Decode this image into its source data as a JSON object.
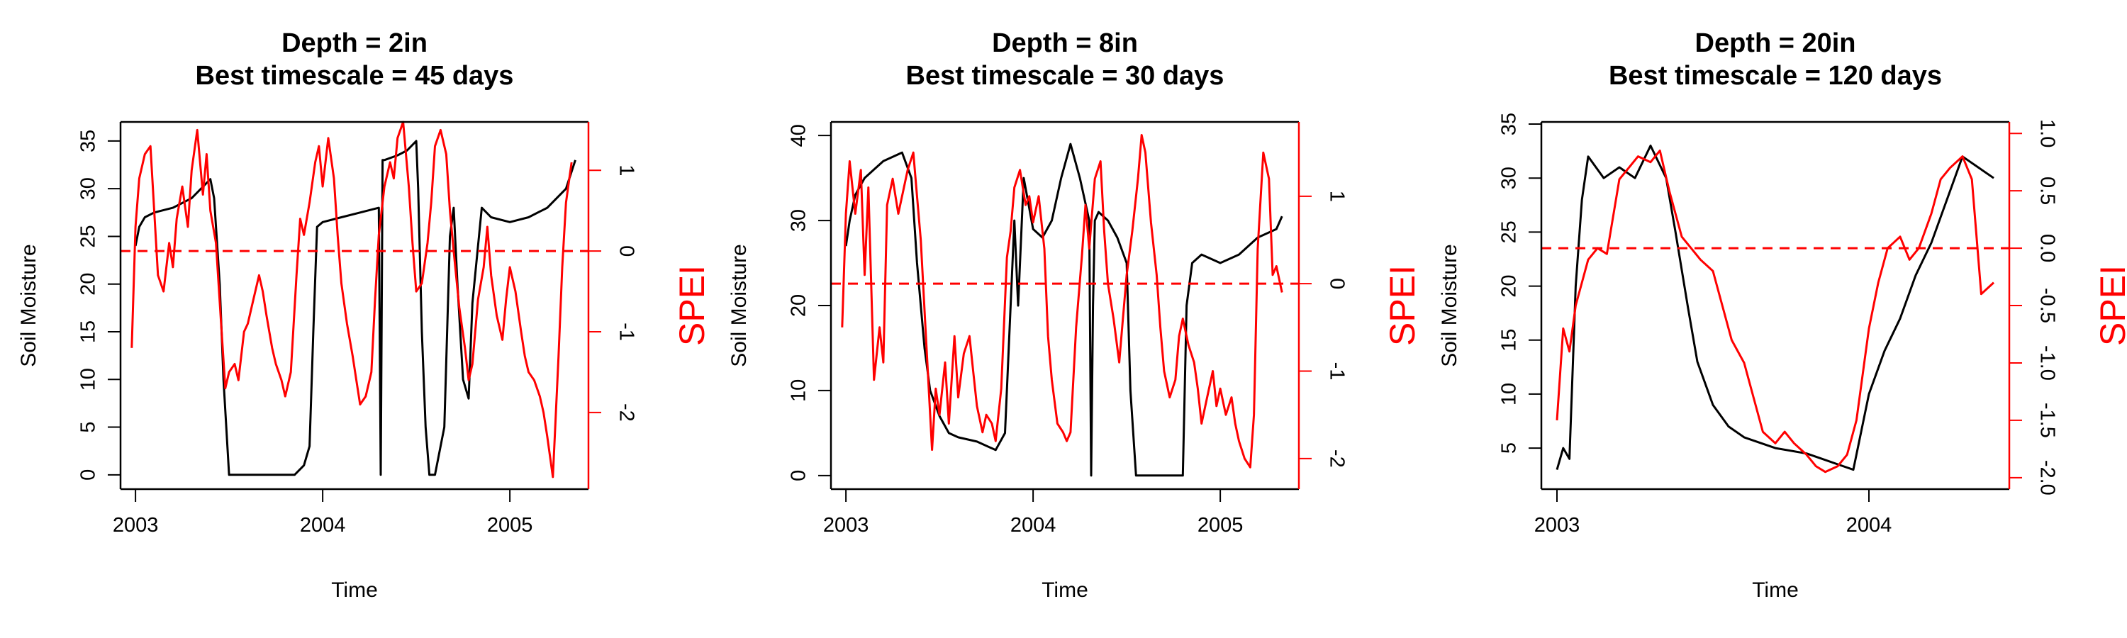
{
  "chart_data": [
    {
      "type": "line",
      "title_lines": [
        "Depth = 2in",
        "Best timescale = 45 days"
      ],
      "xlabel": "Time",
      "ylabel": "Soil Moisture",
      "y2label": "SPEI",
      "xlim": [
        2002.92,
        2005.42
      ],
      "ylim": [
        -1.5,
        37.0
      ],
      "y2lim": [
        -2.95,
        1.6
      ],
      "x_ticks": [
        2003,
        2004,
        2005
      ],
      "x_tick_labels": [
        "2003",
        "2004",
        "2005"
      ],
      "y_ticks": [
        0,
        5,
        10,
        15,
        20,
        25,
        30,
        35
      ],
      "y_tick_labels": [
        "0",
        "5",
        "10",
        "15",
        "20",
        "25",
        "30",
        "35"
      ],
      "y2_ticks": [
        -2,
        -1,
        0,
        1
      ],
      "y2_tick_labels": [
        "-2",
        "-1",
        "0",
        "1"
      ],
      "reference_line": {
        "axis": "y2",
        "value": 0,
        "style": "dashed",
        "color": "#ff0000"
      },
      "series": [
        {
          "axis": "y",
          "color": "#000000",
          "x": [
            2003.0,
            2003.02,
            2003.05,
            2003.1,
            2003.2,
            2003.3,
            2003.35,
            2003.4,
            2003.42,
            2003.45,
            2003.47,
            2003.5,
            2003.55,
            2003.7,
            2003.85,
            2003.9,
            2003.93,
            2003.95,
            2003.97,
            2004.0,
            2004.1,
            2004.2,
            2004.3,
            2004.31,
            2004.32,
            2004.33,
            2004.4,
            2004.45,
            2004.5,
            2004.51,
            2004.53,
            2004.55,
            2004.57,
            2004.6,
            2004.65,
            2004.68,
            2004.7,
            2004.72,
            2004.75,
            2004.78,
            2004.8,
            2004.85,
            2004.9,
            2005.0,
            2005.1,
            2005.2,
            2005.3,
            2005.35
          ],
          "y": [
            24,
            26,
            27,
            27.5,
            28,
            29,
            30,
            31,
            29,
            20,
            10,
            0,
            0,
            0,
            0,
            1,
            3,
            15,
            26,
            26.5,
            27,
            27.5,
            28,
            0,
            33,
            33,
            33.5,
            34,
            35,
            30,
            15,
            5,
            0,
            0,
            5,
            25,
            28,
            20,
            10,
            8,
            18,
            28,
            27,
            26.5,
            27,
            28,
            30,
            33
          ]
        },
        {
          "axis": "y2",
          "color": "#ff0000",
          "x": [
            2002.98,
            2003.0,
            2003.02,
            2003.05,
            2003.08,
            2003.1,
            2003.12,
            2003.15,
            2003.18,
            2003.2,
            2003.22,
            2003.25,
            2003.28,
            2003.3,
            2003.33,
            2003.36,
            2003.38,
            2003.4,
            2003.43,
            2003.46,
            2003.48,
            2003.5,
            2003.53,
            2003.55,
            2003.58,
            2003.6,
            2003.63,
            2003.66,
            2003.68,
            2003.7,
            2003.73,
            2003.75,
            2003.78,
            2003.8,
            2003.83,
            2003.86,
            2003.88,
            2003.9,
            2003.93,
            2003.96,
            2003.98,
            2004.0,
            2004.03,
            2004.06,
            2004.08,
            2004.1,
            2004.13,
            2004.16,
            2004.18,
            2004.2,
            2004.23,
            2004.26,
            2004.28,
            2004.3,
            2004.33,
            2004.36,
            2004.38,
            2004.4,
            2004.43,
            2004.46,
            2004.48,
            2004.5,
            2004.53,
            2004.56,
            2004.58,
            2004.6,
            2004.63,
            2004.66,
            2004.68,
            2004.7,
            2004.73,
            2004.76,
            2004.78,
            2004.8,
            2004.83,
            2004.86,
            2004.88,
            2004.9,
            2004.93,
            2004.96,
            2004.98,
            2005.0,
            2005.03,
            2005.06,
            2005.08,
            2005.1,
            2005.13,
            2005.16,
            2005.18,
            2005.2,
            2005.23,
            2005.26,
            2005.28,
            2005.3,
            2005.33
          ],
          "y": [
            -1.2,
            0.3,
            0.9,
            1.2,
            1.3,
            0.5,
            -0.3,
            -0.5,
            0.1,
            -0.2,
            0.4,
            0.8,
            0.3,
            1.0,
            1.5,
            0.7,
            1.2,
            0.5,
            0.1,
            -1.0,
            -1.7,
            -1.5,
            -1.4,
            -1.6,
            -1.0,
            -0.9,
            -0.6,
            -0.3,
            -0.5,
            -0.8,
            -1.2,
            -1.4,
            -1.6,
            -1.8,
            -1.5,
            -0.3,
            0.4,
            0.2,
            0.6,
            1.1,
            1.3,
            0.8,
            1.4,
            0.9,
            0.2,
            -0.4,
            -0.9,
            -1.3,
            -1.6,
            -1.9,
            -1.8,
            -1.5,
            -0.6,
            0.2,
            0.8,
            1.1,
            0.9,
            1.4,
            1.6,
            0.8,
            0.1,
            -0.5,
            -0.4,
            0.1,
            0.6,
            1.3,
            1.5,
            1.2,
            0.5,
            0.0,
            -0.7,
            -1.2,
            -1.6,
            -1.4,
            -0.6,
            -0.2,
            0.3,
            -0.3,
            -0.8,
            -1.1,
            -0.6,
            -0.2,
            -0.5,
            -1.0,
            -1.3,
            -1.5,
            -1.6,
            -1.8,
            -2.0,
            -2.3,
            -2.8,
            -1.3,
            -0.2,
            0.6,
            1.1
          ]
        }
      ]
    },
    {
      "type": "line",
      "title_lines": [
        "Depth = 8in",
        "Best timescale = 30 days"
      ],
      "xlabel": "Time",
      "ylabel": "Soil Moisture",
      "y2label": "SPEI",
      "xlim": [
        2002.92,
        2005.42
      ],
      "ylim": [
        -1.6,
        41.6
      ],
      "y2lim": [
        -2.35,
        1.85
      ],
      "x_ticks": [
        2003,
        2004,
        2005
      ],
      "x_tick_labels": [
        "2003",
        "2004",
        "2005"
      ],
      "y_ticks": [
        0,
        10,
        20,
        30,
        40
      ],
      "y_tick_labels": [
        "0",
        "10",
        "20",
        "30",
        "40"
      ],
      "y2_ticks": [
        -2,
        -1,
        0,
        1
      ],
      "y2_tick_labels": [
        "-2",
        "-1",
        "0",
        "1"
      ],
      "reference_line": {
        "axis": "y2",
        "value": 0,
        "style": "dashed",
        "color": "#ff0000"
      },
      "series": [
        {
          "axis": "y",
          "color": "#000000",
          "x": [
            2003.0,
            2003.02,
            2003.05,
            2003.1,
            2003.15,
            2003.2,
            2003.25,
            2003.3,
            2003.35,
            2003.38,
            2003.42,
            2003.45,
            2003.5,
            2003.55,
            2003.6,
            2003.7,
            2003.8,
            2003.85,
            2003.9,
            2003.92,
            2003.95,
            2004.0,
            2004.05,
            2004.1,
            2004.15,
            2004.2,
            2004.25,
            2004.3,
            2004.31,
            2004.32,
            2004.33,
            2004.35,
            2004.4,
            2004.45,
            2004.5,
            2004.52,
            2004.55,
            2004.6,
            2004.7,
            2004.8,
            2004.82,
            2004.85,
            2004.9,
            2005.0,
            2005.1,
            2005.2,
            2005.3,
            2005.33
          ],
          "y": [
            27,
            30,
            33,
            35,
            36,
            37,
            37.5,
            38,
            35,
            25,
            15,
            10,
            7,
            5,
            4.5,
            4,
            3,
            5,
            30,
            20,
            35,
            29,
            28,
            30,
            35,
            39,
            35,
            30,
            0,
            20,
            30,
            31,
            30,
            28,
            25,
            10,
            0,
            0,
            0,
            0,
            20,
            25,
            26,
            25,
            26,
            28,
            29,
            30.5
          ]
        },
        {
          "axis": "y2",
          "color": "#ff0000",
          "x": [
            2002.98,
            2003.0,
            2003.02,
            2003.05,
            2003.08,
            2003.1,
            2003.12,
            2003.15,
            2003.18,
            2003.2,
            2003.22,
            2003.25,
            2003.28,
            2003.3,
            2003.33,
            2003.36,
            2003.38,
            2003.4,
            2003.43,
            2003.46,
            2003.48,
            2003.5,
            2003.53,
            2003.55,
            2003.58,
            2003.6,
            2003.63,
            2003.66,
            2003.68,
            2003.7,
            2003.73,
            2003.75,
            2003.78,
            2003.8,
            2003.83,
            2003.86,
            2003.88,
            2003.9,
            2003.93,
            2003.96,
            2003.98,
            2004.0,
            2004.03,
            2004.06,
            2004.08,
            2004.1,
            2004.13,
            2004.16,
            2004.18,
            2004.2,
            2004.23,
            2004.26,
            2004.28,
            2004.3,
            2004.33,
            2004.36,
            2004.38,
            2004.4,
            2004.43,
            2004.46,
            2004.48,
            2004.5,
            2004.53,
            2004.56,
            2004.58,
            2004.6,
            2004.63,
            2004.66,
            2004.68,
            2004.7,
            2004.73,
            2004.76,
            2004.78,
            2004.8,
            2004.83,
            2004.86,
            2004.88,
            2004.9,
            2004.93,
            2004.96,
            2004.98,
            2005.0,
            2005.03,
            2005.06,
            2005.08,
            2005.1,
            2005.13,
            2005.16,
            2005.18,
            2005.2,
            2005.23,
            2005.26,
            2005.28,
            2005.3,
            2005.33
          ],
          "y": [
            -0.5,
            0.8,
            1.4,
            0.8,
            1.3,
            0.1,
            1.1,
            -1.1,
            -0.5,
            -0.9,
            0.9,
            1.2,
            0.8,
            1.0,
            1.3,
            1.5,
            1.0,
            0.5,
            -0.7,
            -1.9,
            -1.2,
            -1.5,
            -0.9,
            -1.6,
            -0.6,
            -1.3,
            -0.8,
            -0.6,
            -1.0,
            -1.4,
            -1.7,
            -1.5,
            -1.6,
            -1.8,
            -1.2,
            0.3,
            0.6,
            1.1,
            1.3,
            0.9,
            1.0,
            0.7,
            1.0,
            0.4,
            -0.6,
            -1.1,
            -1.6,
            -1.7,
            -1.8,
            -1.7,
            -0.5,
            0.3,
            0.9,
            0.4,
            1.2,
            1.4,
            0.6,
            0.0,
            -0.4,
            -0.9,
            -0.4,
            0.1,
            0.6,
            1.2,
            1.7,
            1.5,
            0.7,
            0.1,
            -0.5,
            -1.0,
            -1.3,
            -1.1,
            -0.6,
            -0.4,
            -0.7,
            -0.9,
            -1.2,
            -1.6,
            -1.3,
            -1.0,
            -1.4,
            -1.2,
            -1.5,
            -1.3,
            -1.6,
            -1.8,
            -2.0,
            -2.1,
            -1.5,
            0.4,
            1.5,
            1.2,
            0.1,
            0.2,
            -0.1
          ]
        }
      ]
    },
    {
      "type": "line",
      "title_lines": [
        "Depth = 20in",
        "Best timescale = 120 days"
      ],
      "xlabel": "Time",
      "ylabel": "Soil Moisture",
      "y2label": "SPEI",
      "xlim": [
        2002.95,
        2004.45
      ],
      "ylim": [
        1.2,
        35.2
      ],
      "y2lim": [
        -2.1,
        1.1
      ],
      "x_ticks": [
        2003,
        2004
      ],
      "x_tick_labels": [
        "2003",
        "2004"
      ],
      "y_ticks": [
        5,
        10,
        15,
        20,
        25,
        30,
        35
      ],
      "y_tick_labels": [
        "5",
        "10",
        "15",
        "20",
        "25",
        "30",
        "35"
      ],
      "y2_ticks": [
        -2.0,
        -1.5,
        -1.0,
        -0.5,
        0.0,
        0.5,
        1.0
      ],
      "y2_tick_labels": [
        "-2.0",
        "-1.5",
        "-1.0",
        "-0.5",
        "0.0",
        "0.5",
        "1.0"
      ],
      "reference_line": {
        "axis": "y2",
        "value": 0,
        "style": "dashed",
        "color": "#ff0000"
      },
      "series": [
        {
          "axis": "y",
          "color": "#000000",
          "x": [
            2003.0,
            2003.02,
            2003.04,
            2003.06,
            2003.08,
            2003.1,
            2003.15,
            2003.2,
            2003.25,
            2003.3,
            2003.35,
            2003.38,
            2003.42,
            2003.45,
            2003.5,
            2003.55,
            2003.6,
            2003.7,
            2003.8,
            2003.85,
            2003.9,
            2003.95,
            2004.0,
            2004.05,
            2004.1,
            2004.15,
            2004.2,
            2004.25,
            2004.3,
            2004.35,
            2004.4
          ],
          "y": [
            3,
            5,
            4,
            20,
            28,
            32,
            30,
            31,
            30,
            33,
            30,
            25,
            18,
            13,
            9,
            7,
            6,
            5,
            4.5,
            4,
            3.5,
            3,
            10,
            14,
            17,
            21,
            24,
            28,
            32,
            31,
            30
          ]
        },
        {
          "axis": "y2",
          "color": "#ff0000",
          "x": [
            2003.0,
            2003.02,
            2003.04,
            2003.06,
            2003.08,
            2003.1,
            2003.13,
            2003.16,
            2003.2,
            2003.23,
            2003.26,
            2003.3,
            2003.33,
            2003.36,
            2003.4,
            2003.43,
            2003.46,
            2003.5,
            2003.53,
            2003.56,
            2003.6,
            2003.63,
            2003.66,
            2003.7,
            2003.73,
            2003.76,
            2003.8,
            2003.83,
            2003.86,
            2003.9,
            2003.93,
            2003.96,
            2004.0,
            2004.03,
            2004.06,
            2004.1,
            2004.13,
            2004.16,
            2004.2,
            2004.23,
            2004.26,
            2004.3,
            2004.33,
            2004.36,
            2004.4
          ],
          "y": [
            -1.5,
            -0.7,
            -0.9,
            -0.5,
            -0.3,
            -0.1,
            0.0,
            -0.05,
            0.6,
            0.7,
            0.8,
            0.75,
            0.85,
            0.5,
            0.1,
            0.0,
            -0.1,
            -0.2,
            -0.5,
            -0.8,
            -1.0,
            -1.3,
            -1.6,
            -1.7,
            -1.6,
            -1.7,
            -1.8,
            -1.9,
            -1.95,
            -1.9,
            -1.8,
            -1.5,
            -0.7,
            -0.3,
            0.0,
            0.1,
            -0.1,
            0.0,
            0.3,
            0.6,
            0.7,
            0.8,
            0.6,
            -0.4,
            -0.3
          ]
        }
      ]
    }
  ]
}
